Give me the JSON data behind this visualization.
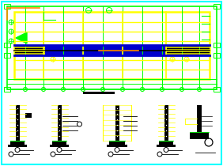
{
  "bg_color": "#ffffff",
  "border_color": "#00ffff",
  "yellow": "#ffff00",
  "green": "#00ff00",
  "blue": "#0000cd",
  "black": "#000000",
  "white": "#ffffff",
  "cyan": "#00ffff",
  "orange": "#ff8800",
  "dark_bg": "#c8e8c8"
}
